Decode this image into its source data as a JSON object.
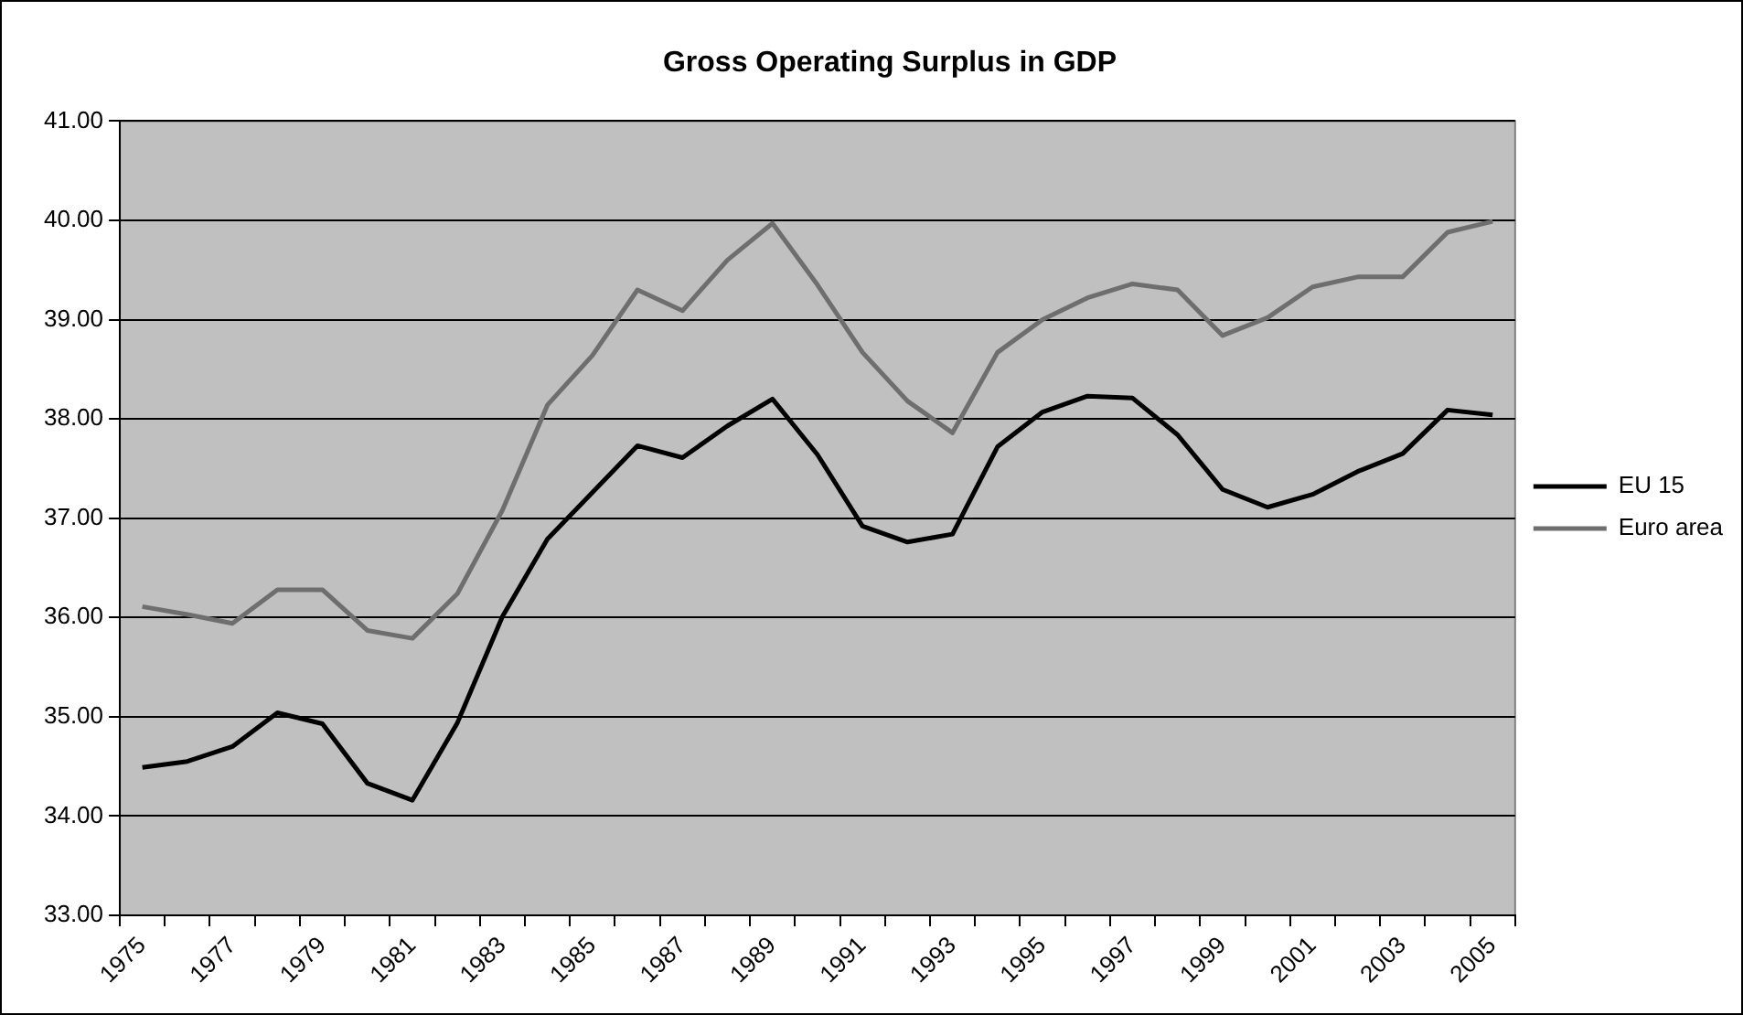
{
  "chart_data": {
    "type": "line",
    "title": "Gross Operating Surplus in GDP",
    "categories": [
      "1975",
      null,
      "1977",
      null,
      "1979",
      null,
      "1981",
      null,
      "1983",
      null,
      "1985",
      null,
      "1987",
      null,
      "1989",
      null,
      "1991",
      null,
      "1993",
      null,
      "1995",
      null,
      "1997",
      null,
      "1999",
      null,
      "2001",
      null,
      "2003",
      null,
      "2005"
    ],
    "series": [
      {
        "name": "EU 15",
        "color": "#000000",
        "values": [
          34.49,
          34.55,
          34.7,
          35.04,
          34.93,
          34.33,
          34.16,
          34.94,
          36.01,
          36.79,
          37.26,
          37.73,
          37.61,
          37.93,
          38.2,
          37.64,
          36.92,
          36.76,
          36.84,
          37.72,
          38.07,
          38.23,
          38.21,
          37.84,
          37.29,
          37.11,
          37.24,
          37.47,
          37.65,
          38.09,
          38.04
        ]
      },
      {
        "name": "Euro area",
        "color": "#6e6e6e",
        "values": [
          36.11,
          36.03,
          35.94,
          36.28,
          36.28,
          35.87,
          35.79,
          36.24,
          37.08,
          38.14,
          38.64,
          39.3,
          39.09,
          39.6,
          39.97,
          39.35,
          38.67,
          38.18,
          37.86,
          38.67,
          39.0,
          39.22,
          39.36,
          39.3,
          38.84,
          39.02,
          39.33,
          39.43,
          39.43,
          39.88,
          39.99
        ]
      }
    ],
    "ylim": [
      33,
      41
    ],
    "yticks": [
      {
        "value": 33,
        "label": "33.00"
      },
      {
        "value": 34,
        "label": "34.00"
      },
      {
        "value": 35,
        "label": "35.00"
      },
      {
        "value": 36,
        "label": "36.00"
      },
      {
        "value": 37,
        "label": "37.00"
      },
      {
        "value": 38,
        "label": "38.00"
      },
      {
        "value": 39,
        "label": "39.00"
      },
      {
        "value": 40,
        "label": "40.00"
      },
      {
        "value": 41,
        "label": "41.00"
      }
    ],
    "grid": "y",
    "legend": "right",
    "marker": "none",
    "line_style": "solid"
  }
}
